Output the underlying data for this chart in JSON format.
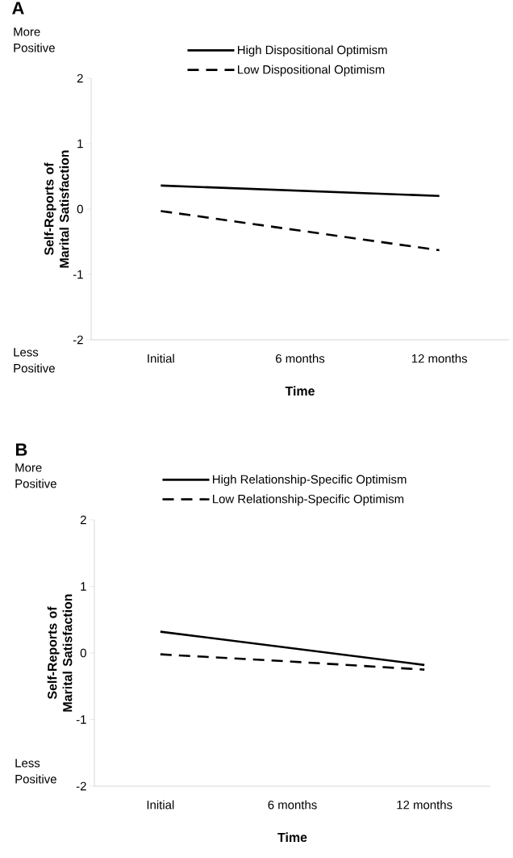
{
  "chart_data": [
    {
      "type": "line",
      "title": "A",
      "xlabel": "Time",
      "ylabel": "Self-Reports of Marital Satisfaction",
      "annotations": [
        "More Positive",
        "Less Positive"
      ],
      "categories": [
        "Initial",
        "6 months",
        "12 months"
      ],
      "series": [
        {
          "name": "High Dispositional Optimism",
          "color": "#000000",
          "line_style": "solid",
          "values": [
            0.36,
            0.28,
            0.2
          ]
        },
        {
          "name": "Low Dispositional Optimism",
          "color": "#000000",
          "line_style": "dashed",
          "values": [
            -0.03,
            -0.33,
            -0.63
          ]
        }
      ],
      "ylim": [
        -2,
        2
      ],
      "yticks": [
        -2,
        -1,
        0,
        1,
        2
      ],
      "legend": "top",
      "marker": "none"
    },
    {
      "type": "line",
      "title": "B",
      "xlabel": "Time",
      "ylabel": "Self-Reports of Marital Satisfaction",
      "annotations": [
        "More Positive",
        "Less Positive"
      ],
      "categories": [
        "Initial",
        "6 months",
        "12 months"
      ],
      "series": [
        {
          "name": "High Relationship-Specific Optimism",
          "color": "#000000",
          "line_style": "solid",
          "values": [
            0.32,
            0.07,
            -0.18
          ]
        },
        {
          "name": "Low Relationship-Specific Optimism",
          "color": "#000000",
          "line_style": "dashed",
          "values": [
            -0.02,
            -0.13,
            -0.25
          ]
        }
      ],
      "ylim": [
        -2,
        2
      ],
      "yticks": [
        -2,
        -1,
        0,
        1,
        2
      ],
      "legend": "top",
      "marker": "none"
    }
  ]
}
